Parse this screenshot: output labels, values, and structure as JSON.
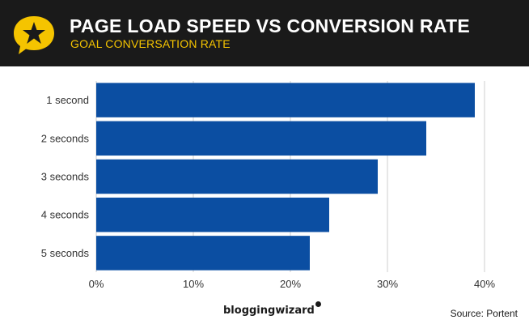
{
  "header": {
    "title": "PAGE LOAD SPEED VS CONVERSION RATE",
    "subtitle": "GOAL CONVERSATION RATE",
    "accent_color": "#f5c400",
    "background_color": "#1a1a1a",
    "logo_icon": "star-speech-bubble-icon"
  },
  "chart_data": {
    "type": "bar",
    "orientation": "horizontal",
    "categories": [
      "1 second",
      "2 seconds",
      "3 seconds",
      "4 seconds",
      "5 seconds"
    ],
    "values": [
      39,
      34,
      29,
      24,
      22
    ],
    "xlim": [
      0,
      40
    ],
    "xticks": [
      0,
      10,
      20,
      30,
      40
    ],
    "xtick_labels": [
      "0%",
      "10%",
      "20%",
      "30%",
      "40%"
    ],
    "grid": true,
    "bar_color": "#0b4ea2"
  },
  "footer": {
    "brand": "bloggingwizard",
    "source_label": "Source:",
    "source_name": "Portent"
  }
}
